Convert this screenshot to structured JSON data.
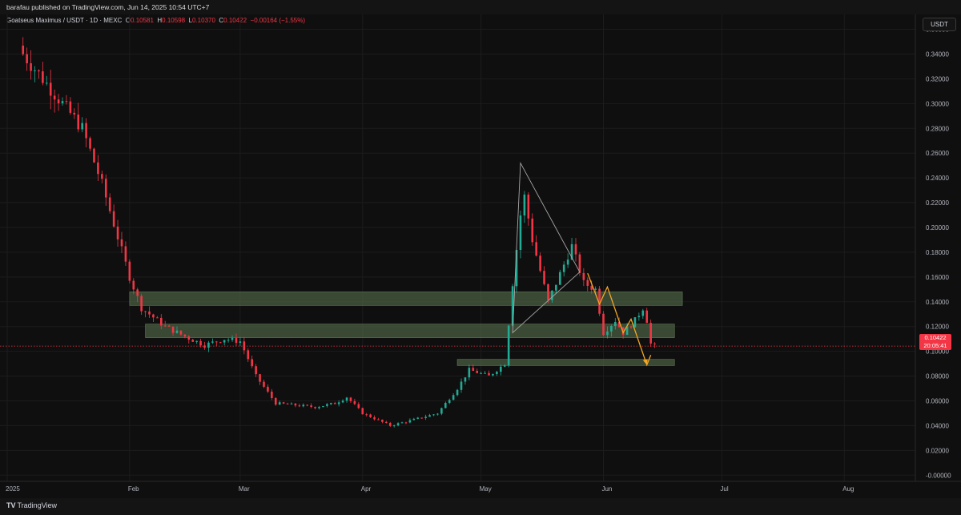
{
  "publisher_line": "barafau published on TradingView.com, Jun 14, 2025 10:54 UTC+7",
  "symbol": {
    "name": "Goatseus Maximus / USDT · 1D · MEXC",
    "o_label": "O",
    "o": "0.10581",
    "h_label": "H",
    "h": "0.10598",
    "l_label": "L",
    "l": "0.10370",
    "c_label": "C",
    "c": "0.10422",
    "change": "−0.00164 (−1.55%)"
  },
  "currency": "USDT",
  "last_price": {
    "price": "0.10422",
    "countdown": "20:05:41"
  },
  "footer_logo": {
    "mark": "TV",
    "text": "TradingView"
  },
  "colors": {
    "up": "#22ab94",
    "down": "#f23645",
    "zone": "#4a5e42",
    "pattern": "#f5a623",
    "triangle": "#a8a8a8"
  },
  "chart_data": {
    "type": "candlestick",
    "title": "Goatseus Maximus / USDT",
    "interval": "1D",
    "exchange": "MEXC",
    "y_axis": {
      "ylim": [
        -0.005,
        0.372
      ],
      "ticks": [
        0.36,
        0.34,
        0.32,
        0.3,
        0.28,
        0.26,
        0.24,
        0.22,
        0.2,
        0.18,
        0.16,
        0.14,
        0.12,
        0.1,
        0.08,
        0.06,
        0.04,
        0.02,
        0.0
      ],
      "tick_labels": [
        "0.36000",
        "0.34000",
        "0.32000",
        "0.30000",
        "0.28000",
        "0.26000",
        "0.24000",
        "0.22000",
        "0.20000",
        "0.18000",
        "0.16000",
        "0.14000",
        "0.12000",
        "0.10000",
        "0.08000",
        "0.06000",
        "0.04000",
        "0.02000",
        "-0.00000"
      ]
    },
    "x_axis": {
      "start_date": "2025-01-01",
      "end_date": "2025-08-19",
      "ticks": [
        {
          "date": "2025-01-01",
          "label": "2025"
        },
        {
          "date": "2025-02-01",
          "label": "Feb"
        },
        {
          "date": "2025-03-01",
          "label": "Mar"
        },
        {
          "date": "2025-04-01",
          "label": "Apr"
        },
        {
          "date": "2025-05-01",
          "label": "May"
        },
        {
          "date": "2025-06-01",
          "label": "Jun"
        },
        {
          "date": "2025-07-01",
          "label": "Jul"
        },
        {
          "date": "2025-08-01",
          "label": "Aug"
        }
      ]
    },
    "key_closes": [
      {
        "date": "2025-01-05",
        "close": 0.34
      },
      {
        "date": "2025-01-15",
        "close": 0.3
      },
      {
        "date": "2025-01-20",
        "close": 0.28
      },
      {
        "date": "2025-01-25",
        "close": 0.235
      },
      {
        "date": "2025-02-01",
        "close": 0.16
      },
      {
        "date": "2025-02-04",
        "close": 0.135
      },
      {
        "date": "2025-02-10",
        "close": 0.12
      },
      {
        "date": "2025-02-15",
        "close": 0.112
      },
      {
        "date": "2025-02-20",
        "close": 0.105
      },
      {
        "date": "2025-02-25",
        "close": 0.11
      },
      {
        "date": "2025-03-01",
        "close": 0.108
      },
      {
        "date": "2025-03-05",
        "close": 0.08
      },
      {
        "date": "2025-03-10",
        "close": 0.058
      },
      {
        "date": "2025-03-20",
        "close": 0.055
      },
      {
        "date": "2025-03-25",
        "close": 0.058
      },
      {
        "date": "2025-03-28",
        "close": 0.063
      },
      {
        "date": "2025-04-01",
        "close": 0.05
      },
      {
        "date": "2025-04-08",
        "close": 0.04
      },
      {
        "date": "2025-04-13",
        "close": 0.044
      },
      {
        "date": "2025-04-20",
        "close": 0.05
      },
      {
        "date": "2025-04-25",
        "close": 0.07
      },
      {
        "date": "2025-04-28",
        "close": 0.085
      },
      {
        "date": "2025-05-03",
        "close": 0.08
      },
      {
        "date": "2025-05-07",
        "close": 0.09
      },
      {
        "date": "2025-05-09",
        "close": 0.155
      },
      {
        "date": "2025-05-11",
        "close": 0.21
      },
      {
        "date": "2025-05-12",
        "close": 0.225
      },
      {
        "date": "2025-05-14",
        "close": 0.19
      },
      {
        "date": "2025-05-18",
        "close": 0.14
      },
      {
        "date": "2025-05-22",
        "close": 0.17
      },
      {
        "date": "2025-05-24",
        "close": 0.185
      },
      {
        "date": "2025-05-27",
        "close": 0.155
      },
      {
        "date": "2025-05-30",
        "close": 0.15
      },
      {
        "date": "2025-06-01",
        "close": 0.115
      },
      {
        "date": "2025-06-04",
        "close": 0.125
      },
      {
        "date": "2025-06-06",
        "close": 0.115
      },
      {
        "date": "2025-06-09",
        "close": 0.125
      },
      {
        "date": "2025-06-11",
        "close": 0.135
      },
      {
        "date": "2025-06-12",
        "close": 0.125
      },
      {
        "date": "2025-06-13",
        "close": 0.106
      },
      {
        "date": "2025-06-14",
        "close": 0.10422
      }
    ],
    "annotations": {
      "zones": [
        {
          "from_date": "2025-02-01",
          "to_date": "2025-06-21",
          "low": 0.137,
          "high": 0.148
        },
        {
          "from_date": "2025-02-05",
          "to_date": "2025-06-19",
          "low": 0.111,
          "high": 0.122
        },
        {
          "from_date": "2025-04-25",
          "to_date": "2025-06-19",
          "low": 0.0885,
          "high": 0.0935
        }
      ],
      "triangle": [
        {
          "date": "2025-05-09",
          "price": 0.115
        },
        {
          "date": "2025-05-11",
          "price": 0.252
        },
        {
          "date": "2025-05-26",
          "price": 0.164
        }
      ],
      "zigzag": [
        {
          "date": "2025-05-28",
          "price": 0.163
        },
        {
          "date": "2025-05-31",
          "price": 0.138
        },
        {
          "date": "2025-06-02",
          "price": 0.152
        },
        {
          "date": "2025-06-06",
          "price": 0.115
        },
        {
          "date": "2025-06-08",
          "price": 0.126
        },
        {
          "date": "2025-06-12",
          "price": 0.089
        },
        {
          "date": "2025-06-13",
          "price": 0.097
        }
      ],
      "last_price_line": 0.10422
    }
  }
}
